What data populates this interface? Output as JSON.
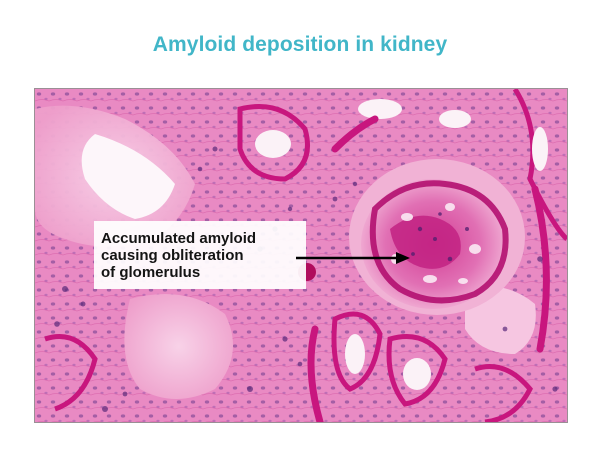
{
  "title": "Amyloid deposition in kidney",
  "annotation": {
    "text": "Accumulated amyloid\ncausing obliteration\nof glomerulus"
  },
  "image": {
    "subject": "histology micrograph of kidney tissue with glomerulus",
    "colors": {
      "background_pink": "#e98ac3",
      "deep_magenta": "#c8167e",
      "pale_pink": "#f4c0dd",
      "nuclei_purple": "#5a2a7a",
      "lumen_white": "#fbf2f7",
      "title_teal": "#41b6c8"
    }
  }
}
